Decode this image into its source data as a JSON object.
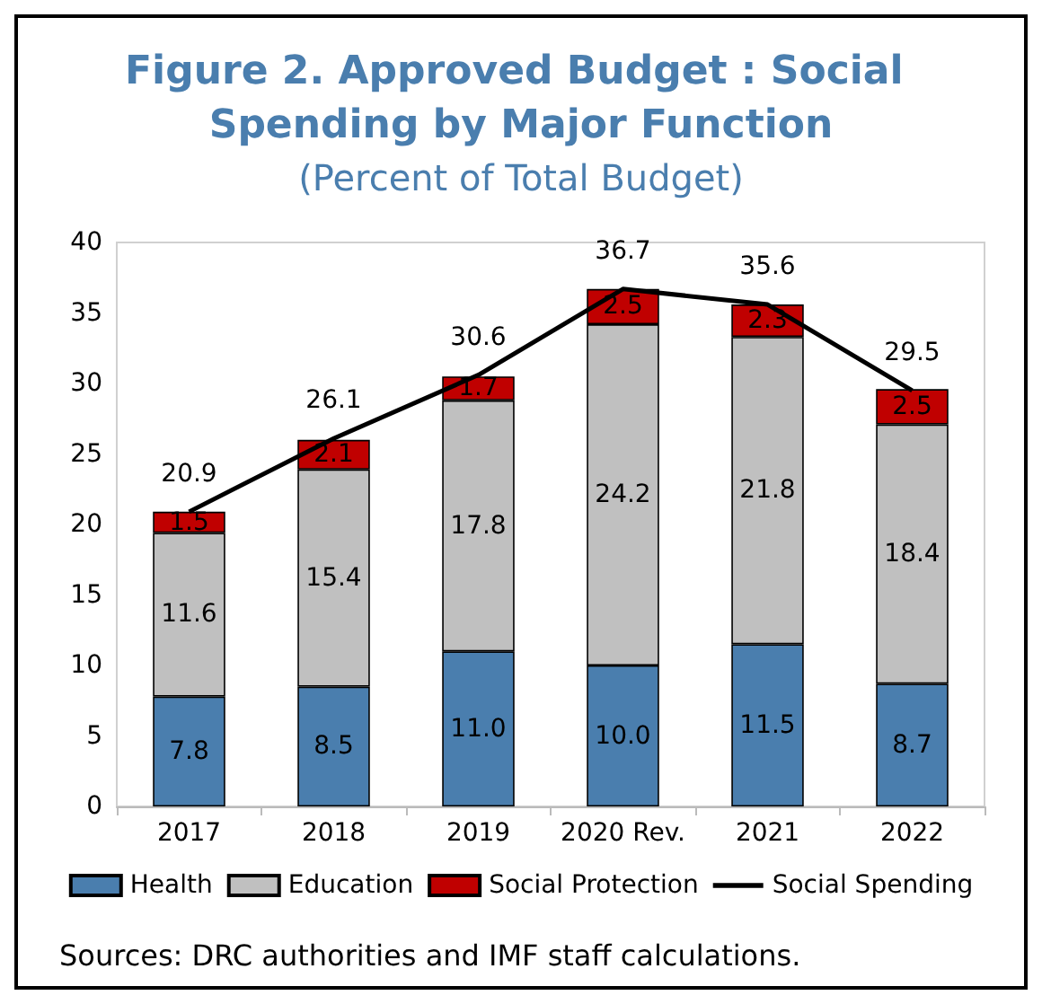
{
  "chart_data": {
    "type": "bar",
    "title": "Figure 2. Approved Budget : Social Spending by Major Function",
    "subtitle": "(Percent of Total Budget)",
    "categories": [
      "2017",
      "2018",
      "2019",
      "2020 Rev.",
      "2021",
      "2022"
    ],
    "stacked": true,
    "series": [
      {
        "name": "Health",
        "color": "#4a7eae",
        "values": [
          7.8,
          8.5,
          11.0,
          10.0,
          11.5,
          8.7
        ],
        "value_labels": [
          "7.8",
          "8.5",
          "11.0",
          "10.0",
          "11.5",
          "8.7"
        ]
      },
      {
        "name": "Education",
        "color": "#c0c0c0",
        "values": [
          11.6,
          15.4,
          17.8,
          24.2,
          21.8,
          18.4
        ],
        "value_labels": [
          "11.6",
          "15.4",
          "17.8",
          "24.2",
          "21.8",
          "18.4"
        ]
      },
      {
        "name": "Social Protection",
        "color": "#c00000",
        "values": [
          1.5,
          2.1,
          1.7,
          2.5,
          2.3,
          2.5
        ],
        "value_labels": [
          "1.5",
          "2.1",
          "1.7",
          "2.5",
          "2.3",
          "2.5"
        ]
      },
      {
        "name": "Social Spending",
        "type": "line",
        "color": "#000000",
        "values": [
          20.9,
          26.1,
          30.6,
          36.7,
          35.6,
          29.5
        ],
        "value_labels": [
          "20.9",
          "26.1",
          "30.6",
          "36.7",
          "35.6",
          "29.5"
        ]
      }
    ],
    "ylim": [
      0,
      40
    ],
    "yticks": [
      0,
      5,
      10,
      15,
      20,
      25,
      30,
      35,
      40
    ],
    "grid": false,
    "legend": "bottom",
    "data_labels": true,
    "marker": "none",
    "annotations": [
      "Sources: DRC authorities and IMF staff calculations."
    ]
  }
}
